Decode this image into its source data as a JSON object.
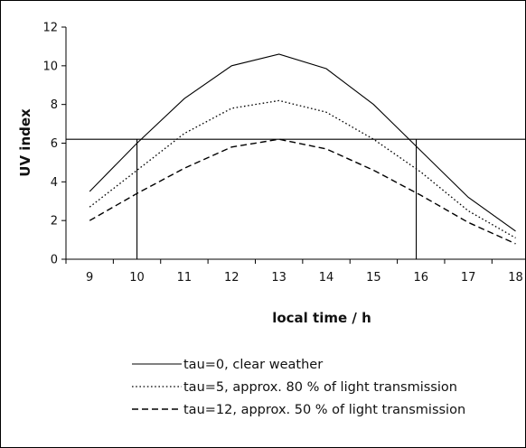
{
  "chart_data": {
    "type": "line",
    "xlabel": "local time / h",
    "ylabel": "UV index",
    "x": [
      9,
      10,
      11,
      12,
      13,
      14,
      15,
      16,
      17,
      18
    ],
    "xlim": [
      8.5,
      18.2
    ],
    "ylim": [
      0,
      12
    ],
    "xticks": [
      9,
      10,
      11,
      12,
      13,
      14,
      15,
      16,
      17,
      18
    ],
    "yticks": [
      0,
      2,
      4,
      6,
      8,
      10,
      12
    ],
    "grid": false,
    "legend_position": "bottom",
    "series": [
      {
        "name": "tau=0, clear weather",
        "style": "solid",
        "values": [
          3.5,
          6.0,
          8.3,
          10.0,
          10.6,
          9.85,
          8.0,
          5.6,
          3.2,
          1.45
        ]
      },
      {
        "name": "tau=5, approx. 80 % of light transmission",
        "style": "dotted",
        "values": [
          2.7,
          4.6,
          6.5,
          7.8,
          8.2,
          7.6,
          6.2,
          4.5,
          2.5,
          1.1
        ]
      },
      {
        "name": "tau=12, approx. 50 % of light transmission",
        "style": "dashed",
        "values": [
          2.0,
          3.4,
          4.7,
          5.8,
          6.2,
          5.7,
          4.6,
          3.3,
          1.9,
          0.8
        ]
      }
    ],
    "reference_lines": {
      "horizontal_y": 6.2,
      "vertical_x": [
        10,
        15.9
      ]
    }
  }
}
